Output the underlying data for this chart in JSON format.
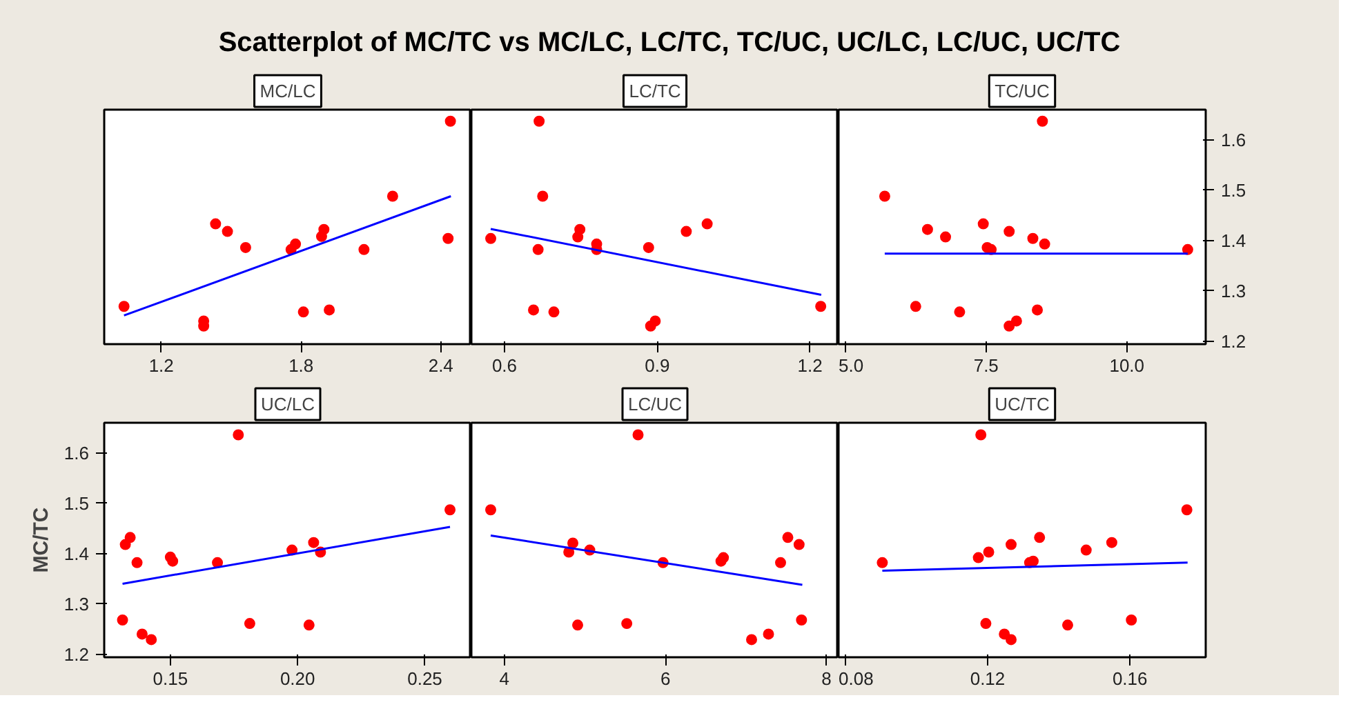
{
  "chart_data": [
    {
      "type": "scatter",
      "title": "Scatterplot of MC/TC vs MC/LC, LC/TC, TC/UC, UC/LC, LC/UC, UC/TC",
      "subtitle": "MC/LC",
      "xlim": [
        0.955,
        2.531
      ],
      "xticks": [
        1.2,
        1.8,
        2.4
      ],
      "ylim": [
        1.194,
        1.66
      ],
      "yticks": [
        1.2,
        1.3,
        1.4,
        1.5,
        1.6
      ],
      "tick_labels": "x",
      "series": [
        {
          "type": "scatter",
          "marker": "circle",
          "color": "#ff0000",
          "x": [
            2.441,
            2.193,
            2.431,
            1.04,
            1.382,
            1.382,
            1.433,
            1.484,
            1.562,
            1.757,
            1.776,
            1.81,
            1.888,
            1.898,
            1.921,
            2.07
          ],
          "values": [
            1.637,
            1.488,
            1.404,
            1.269,
            1.24,
            1.23,
            1.433,
            1.418,
            1.386,
            1.382,
            1.393,
            1.258,
            1.408,
            1.422,
            1.262,
            1.382
          ]
        },
        {
          "type": "line",
          "line_style": "solid",
          "color": "#0000ff",
          "x": [
            1.04,
            2.443
          ],
          "values": [
            1.251,
            1.488
          ]
        }
      ]
    },
    {
      "type": "scatter",
      "subtitle": "LC/TC",
      "xlim": [
        0.535,
        1.256
      ],
      "xticks": [
        0.6,
        0.9,
        1.2
      ],
      "ylim": [
        1.194,
        1.66
      ],
      "yticks": [
        1.2,
        1.3,
        1.4,
        1.5,
        1.6
      ],
      "tick_labels": "x",
      "series": [
        {
          "type": "scatter",
          "marker": "circle",
          "color": "#ff0000",
          "x": [
            0.668,
            0.675,
            0.573,
            0.666,
            0.748,
            0.744,
            0.781,
            0.781,
            0.883,
            0.957,
            0.998,
            0.657,
            0.697,
            0.887,
            0.896,
            1.221
          ],
          "values": [
            1.637,
            1.488,
            1.404,
            1.382,
            1.422,
            1.407,
            1.393,
            1.382,
            1.386,
            1.418,
            1.433,
            1.262,
            1.258,
            1.23,
            1.24,
            1.269
          ]
        },
        {
          "type": "line",
          "line_style": "solid",
          "color": "#0000ff",
          "x": [
            0.573,
            1.222
          ],
          "values": [
            1.423,
            1.292
          ]
        }
      ]
    },
    {
      "type": "scatter",
      "subtitle": "TC/UC",
      "xlim": [
        4.88,
        11.4
      ],
      "xticks": [
        {
          "value": 5,
          "label": "5.0"
        },
        7.5,
        {
          "value": 10,
          "label": "10.0"
        }
      ],
      "ylim": [
        1.194,
        1.66
      ],
      "yticks": [
        1.2,
        1.3,
        1.4,
        1.5,
        1.6
      ],
      "series": [
        {
          "type": "scatter",
          "marker": "circle",
          "color": "#ff0000",
          "x": [
            8.5,
            5.7,
            6.46,
            6.78,
            7.45,
            7.91,
            8.33,
            8.54,
            7.52,
            7.59,
            11.08,
            6.25,
            7.03,
            8.41,
            7.91,
            8.04
          ],
          "values": [
            1.637,
            1.488,
            1.422,
            1.407,
            1.433,
            1.418,
            1.404,
            1.393,
            1.386,
            1.382,
            1.382,
            1.269,
            1.258,
            1.262,
            1.23,
            1.24
          ]
        },
        {
          "type": "line",
          "line_style": "solid",
          "color": "#0000ff",
          "x": [
            5.7,
            11.08
          ],
          "values": [
            1.374,
            1.374
          ]
        }
      ]
    },
    {
      "type": "scatter",
      "subtitle": "UC/LC",
      "ylabel": "MC/TC",
      "xlim": [
        0.124,
        0.2683
      ],
      "xticks": [
        0.15,
        {
          "value": 0.2,
          "label": "0.20"
        },
        0.25
      ],
      "ylim": [
        1.194,
        1.66
      ],
      "yticks": [
        1.2,
        1.3,
        1.4,
        1.5,
        1.6
      ],
      "series": [
        {
          "type": "scatter",
          "marker": "circle",
          "color": "#ff0000",
          "x": [
            0.1312,
            0.1323,
            0.1342,
            0.1369,
            0.1389,
            0.1425,
            0.15,
            0.1509,
            0.1685,
            0.1767,
            0.1812,
            0.1978,
            0.2045,
            0.2063,
            0.209,
            0.2599
          ],
          "values": [
            1.268,
            1.418,
            1.432,
            1.382,
            1.24,
            1.229,
            1.393,
            1.385,
            1.382,
            1.636,
            1.261,
            1.407,
            1.258,
            1.422,
            1.403,
            1.487
          ]
        },
        {
          "type": "line",
          "line_style": "solid",
          "color": "#0000ff",
          "x": [
            0.1312,
            0.2599
          ],
          "values": [
            1.34,
            1.453
          ]
        }
      ]
    },
    {
      "type": "scatter",
      "subtitle": "LC/UC",
      "xlim": [
        3.59,
        8.15
      ],
      "xticks": [
        4,
        6,
        8
      ],
      "ylim": [
        1.194,
        1.66
      ],
      "yticks": [
        1.2,
        1.3,
        1.4,
        1.5,
        1.6
      ],
      "tick_labels": "x",
      "series": [
        {
          "type": "scatter",
          "marker": "circle",
          "color": "#ff0000",
          "x": [
            5.66,
            3.83,
            4.85,
            4.8,
            5.06,
            5.97,
            6.69,
            6.72,
            7.52,
            7.66,
            7.43,
            4.91,
            5.52,
            7.07,
            7.28,
            7.69
          ],
          "values": [
            1.636,
            1.487,
            1.421,
            1.403,
            1.407,
            1.382,
            1.385,
            1.392,
            1.432,
            1.418,
            1.382,
            1.258,
            1.261,
            1.229,
            1.24,
            1.268
          ]
        },
        {
          "type": "line",
          "line_style": "solid",
          "color": "#0000ff",
          "x": [
            3.83,
            7.7
          ],
          "values": [
            1.436,
            1.338
          ]
        }
      ]
    },
    {
      "type": "scatter",
      "subtitle": "UC/TC",
      "xlim": [
        0.0781,
        0.1813
      ],
      "xticks": [
        0.08,
        0.12,
        0.16
      ],
      "ylim": [
        1.194,
        1.66
      ],
      "yticks": [
        1.2,
        1.3,
        1.4,
        1.5,
        1.6
      ],
      "tick_labels": "x",
      "series": [
        {
          "type": "scatter",
          "marker": "circle",
          "color": "#ff0000",
          "x": [
            0.1181,
            0.176,
            0.0904,
            0.1174,
            0.1203,
            0.1266,
            0.1346,
            0.1318,
            0.1328,
            0.1477,
            0.1549,
            0.1195,
            0.1247,
            0.1266,
            0.1425,
            0.1604
          ],
          "values": [
            1.636,
            1.487,
            1.382,
            1.392,
            1.403,
            1.418,
            1.432,
            1.382,
            1.385,
            1.407,
            1.422,
            1.261,
            1.24,
            1.229,
            1.258,
            1.268
          ]
        },
        {
          "type": "line",
          "line_style": "solid",
          "color": "#0000ff",
          "x": [
            0.0904,
            0.1762
          ],
          "values": [
            1.366,
            1.382
          ]
        }
      ]
    }
  ]
}
